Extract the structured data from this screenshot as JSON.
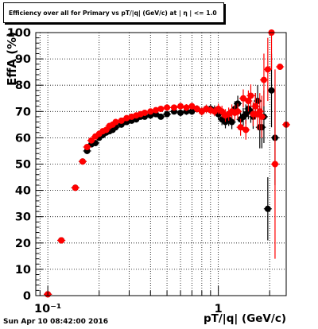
{
  "chart_data": {
    "type": "scatter",
    "title": "Efficiency over all for Primary vs pT/|q| (GeV/c) at | η | <= 1.0",
    "xlabel": "pT/|q| (GeV/c)",
    "ylabel": "EffA (%)",
    "xscale": "log",
    "xlim": [
      0.085,
      2.5
    ],
    "ylim": [
      0,
      100
    ],
    "grid": true,
    "y_ticks": [
      0,
      10,
      20,
      30,
      40,
      50,
      60,
      70,
      80,
      90,
      100
    ],
    "y_tick_labels": [
      "0",
      "10",
      "20",
      "30",
      "40",
      "50",
      "60",
      "70",
      "80",
      "90",
      "100"
    ],
    "x_major_ticks": [
      0.1,
      1
    ],
    "x_tick_labels": [
      "10⁻¹",
      "1"
    ],
    "series": [
      {
        "color": "#000000",
        "x": [
          0.1,
          0.12,
          0.145,
          0.16,
          0.17,
          0.18,
          0.19,
          0.2,
          0.21,
          0.22,
          0.23,
          0.24,
          0.25,
          0.27,
          0.29,
          0.31,
          0.33,
          0.35,
          0.37,
          0.4,
          0.43,
          0.46,
          0.5,
          0.55,
          0.6,
          0.65,
          0.7,
          0.75,
          0.8,
          0.85,
          0.9,
          0.95,
          1.0,
          1.05,
          1.1,
          1.15,
          1.2,
          1.25,
          1.3,
          1.35,
          1.4,
          1.45,
          1.5,
          1.55,
          1.6,
          1.65,
          1.7,
          1.75,
          1.8,
          1.85,
          1.95,
          2.05,
          2.15
        ],
        "y": [
          0.5,
          21,
          41,
          51,
          55,
          57.5,
          58,
          60,
          61,
          62,
          62.5,
          63,
          64,
          65,
          66,
          66.5,
          67,
          68,
          68,
          68.5,
          69,
          68,
          69,
          70,
          69.5,
          70,
          70,
          71,
          70,
          71,
          71,
          70.5,
          69,
          67,
          66,
          67,
          66,
          71,
          73,
          67,
          68,
          69,
          71,
          70,
          68,
          72,
          74,
          64,
          64,
          68,
          33,
          78,
          60
        ],
        "err": [
          0.3,
          0.5,
          0.6,
          0.6,
          0.6,
          0.7,
          0.7,
          0.7,
          0.7,
          0.7,
          0.7,
          0.7,
          0.8,
          0.8,
          0.8,
          0.8,
          0.8,
          0.9,
          0.9,
          0.9,
          1.0,
          1.0,
          1.0,
          1.1,
          1.2,
          1.3,
          1.3,
          1.4,
          1.5,
          1.6,
          1.7,
          1.8,
          2.0,
          2.2,
          2.4,
          2.5,
          2.7,
          2.9,
          3.0,
          3.2,
          3.4,
          3.7,
          4.0,
          4.3,
          4.6,
          5,
          6,
          8,
          8,
          10,
          12,
          14,
          18
        ]
      },
      {
        "color": "#ff0000",
        "x": [
          0.1,
          0.12,
          0.145,
          0.16,
          0.17,
          0.18,
          0.19,
          0.2,
          0.21,
          0.22,
          0.23,
          0.24,
          0.25,
          0.27,
          0.29,
          0.31,
          0.33,
          0.35,
          0.37,
          0.4,
          0.43,
          0.46,
          0.5,
          0.55,
          0.6,
          0.65,
          0.7,
          0.75,
          0.8,
          0.85,
          0.9,
          0.95,
          1.0,
          1.05,
          1.1,
          1.15,
          1.2,
          1.25,
          1.3,
          1.35,
          1.4,
          1.45,
          1.5,
          1.55,
          1.6,
          1.65,
          1.7,
          1.75,
          1.8,
          1.85,
          1.95,
          2.05,
          2.15,
          2.3,
          2.5
        ],
        "y": [
          0.5,
          21,
          41,
          51,
          56.5,
          59,
          60.5,
          61.5,
          62.5,
          63,
          64.5,
          65,
          66,
          66.5,
          67.5,
          68,
          68.5,
          69,
          69.5,
          70,
          70.5,
          71,
          71.5,
          71.5,
          72,
          71.5,
          72,
          71,
          70,
          71,
          70.5,
          70,
          71,
          70,
          68.5,
          69,
          70,
          69.5,
          70,
          64,
          75,
          63,
          74,
          76,
          69,
          72,
          69,
          70,
          68,
          82,
          86,
          100,
          50,
          87,
          65
        ],
        "err": [
          0.3,
          0.5,
          0.6,
          0.6,
          0.6,
          0.7,
          0.7,
          0.7,
          0.7,
          0.7,
          0.7,
          0.7,
          0.8,
          0.8,
          0.8,
          0.8,
          0.8,
          0.9,
          0.9,
          0.9,
          1.0,
          1.0,
          1.0,
          1.1,
          1.2,
          1.3,
          1.3,
          1.4,
          1.5,
          1.6,
          1.7,
          1.8,
          2.0,
          2.2,
          2.4,
          2.5,
          2.7,
          2.9,
          3.0,
          3.2,
          3.4,
          3.7,
          4.0,
          4.3,
          4.6,
          5,
          6,
          7,
          8,
          10,
          12,
          14,
          36,
          0,
          0
        ]
      }
    ]
  },
  "footer": {
    "timestamp": "Sun Apr 10 08:42:00 2016"
  }
}
